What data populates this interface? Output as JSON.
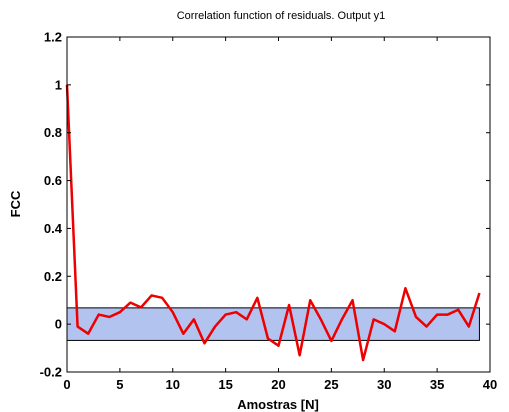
{
  "chart_data": {
    "type": "line",
    "title": "Correlation function of residuals. Output y1",
    "xlabel": "Amostras [N]",
    "ylabel": "FCC",
    "xlim": [
      0,
      40
    ],
    "ylim": [
      -0.2,
      1.2
    ],
    "xticks": [
      "0",
      "5",
      "10",
      "15",
      "20",
      "25",
      "30",
      "35",
      "40"
    ],
    "yticks": [
      "-0.2",
      "0",
      "0.2",
      "0.4",
      "0.6",
      "0.8",
      "1",
      "1.2"
    ],
    "grid": false,
    "confidence_band": {
      "lower": -0.068,
      "upper": 0.068,
      "x_range": [
        0,
        39
      ],
      "color": "#b3c3f0"
    },
    "series": [
      {
        "color": "#ee0000",
        "x": [
          0,
          1,
          2,
          3,
          4,
          5,
          6,
          7,
          8,
          9,
          10,
          11,
          12,
          13,
          14,
          15,
          16,
          17,
          18,
          19,
          20,
          21,
          22,
          23,
          24,
          25,
          26,
          27,
          28,
          29,
          30,
          31,
          32,
          33,
          34,
          35,
          36,
          37,
          38,
          39
        ],
        "values": [
          1.0,
          -0.01,
          -0.04,
          0.04,
          0.03,
          0.05,
          0.09,
          0.07,
          0.12,
          0.11,
          0.05,
          -0.04,
          0.02,
          -0.08,
          -0.01,
          0.04,
          0.05,
          0.02,
          0.11,
          -0.06,
          -0.09,
          0.08,
          -0.13,
          0.1,
          0.02,
          -0.07,
          0.02,
          0.1,
          -0.15,
          0.02,
          0.0,
          -0.03,
          0.15,
          0.03,
          -0.01,
          0.04,
          0.04,
          0.06,
          -0.01,
          0.13
        ]
      }
    ]
  }
}
